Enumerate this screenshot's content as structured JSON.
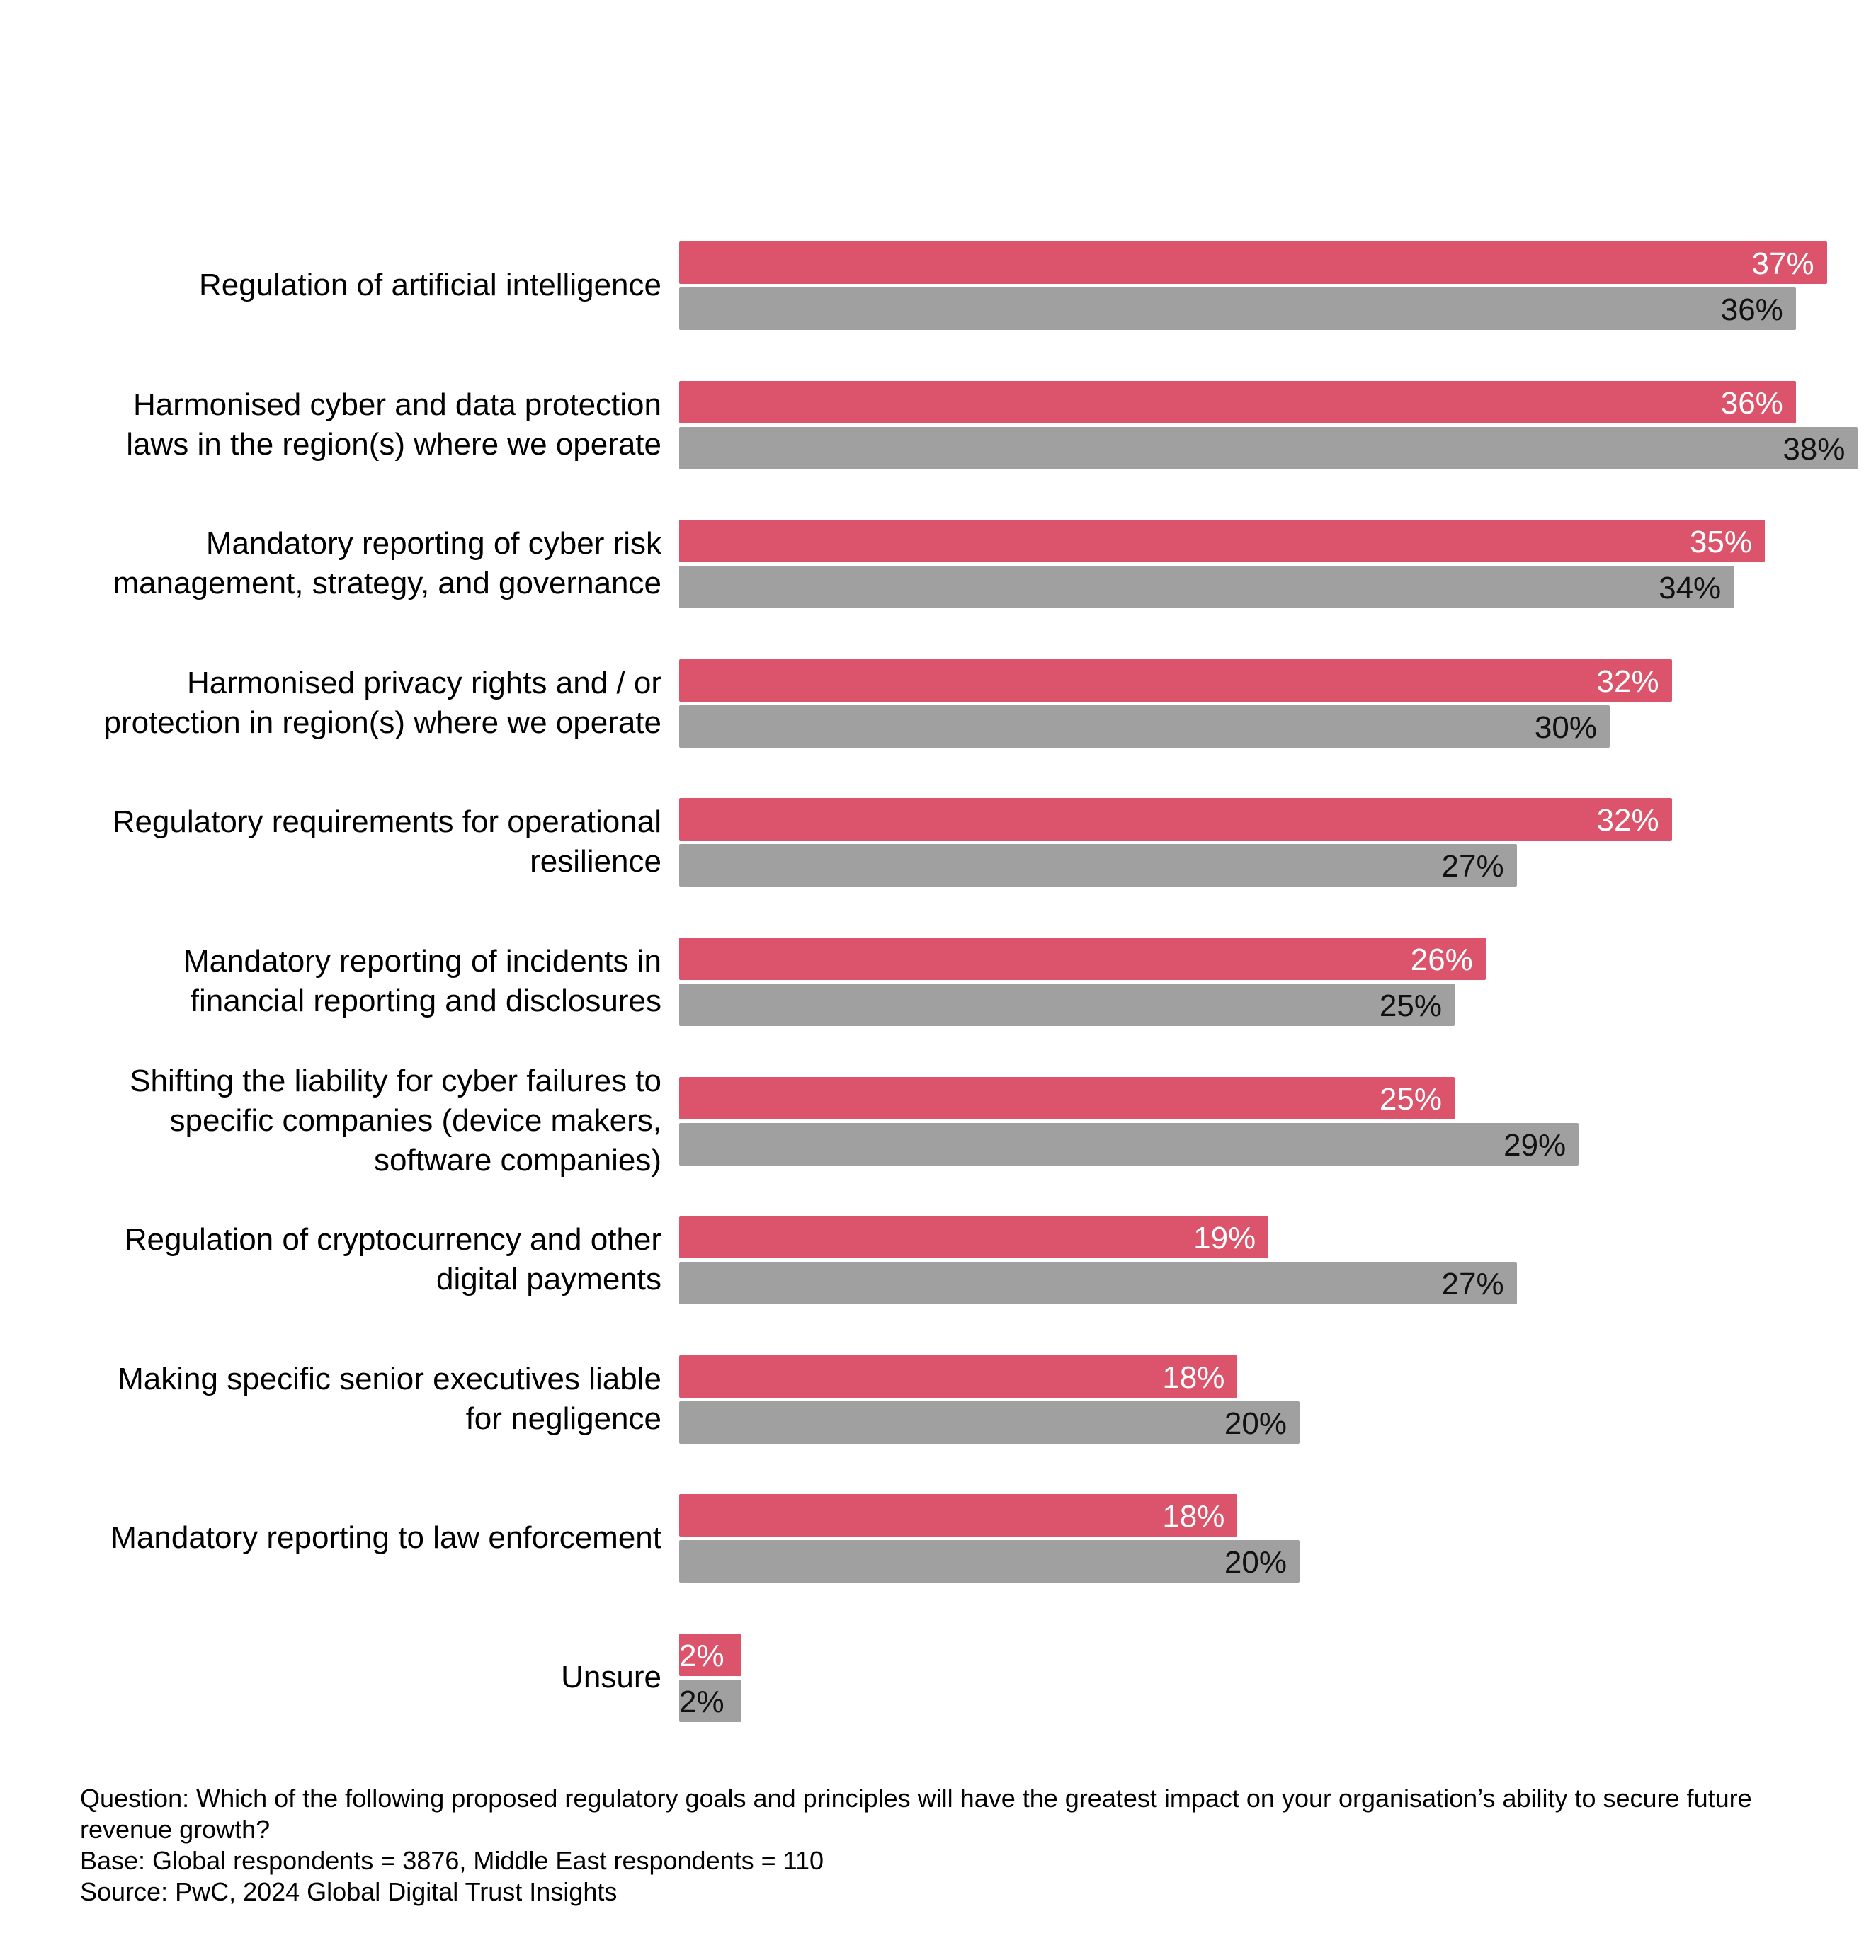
{
  "chart_data": {
    "type": "bar",
    "orientation": "horizontal",
    "categories": [
      "Regulation of artificial intelligence",
      "Harmonised cyber and data protection\nlaws in the region(s) where we operate",
      "Mandatory reporting of cyber risk\nmanagement, strategy, and governance",
      "Harmonised privacy rights and / or\nprotection in region(s) where we operate",
      "Regulatory requirements for operational\nresilience",
      "Mandatory reporting of incidents in\nfinancial reporting and disclosures",
      "Shifting the liability for cyber failures to\nspecific companies (device makers,\nsoftware companies)",
      "Regulation of cryptocurrency and other\ndigital payments",
      "Making specific senior executives liable\nfor negligence",
      "Mandatory reporting to law enforcement",
      "Unsure"
    ],
    "series": [
      {
        "color": "#DC546B",
        "values": [
          37,
          36,
          35,
          32,
          32,
          26,
          25,
          19,
          18,
          18,
          2
        ]
      },
      {
        "color": "#A0A0A0",
        "values": [
          36,
          38,
          34,
          30,
          27,
          25,
          29,
          27,
          20,
          20,
          2
        ]
      }
    ],
    "value_format": "%",
    "xlim": [
      0,
      38
    ],
    "grid": false,
    "legend": "none"
  },
  "footer": {
    "question": "Question: Which of the following proposed regulatory goals and principles will have the greatest impact on your organisation’s ability to secure future revenue growth?",
    "base": "Base: Global respondents = 3876, Middle East respondents = 110",
    "source": "Source: PwC, 2024 Global Digital Trust Insights"
  }
}
